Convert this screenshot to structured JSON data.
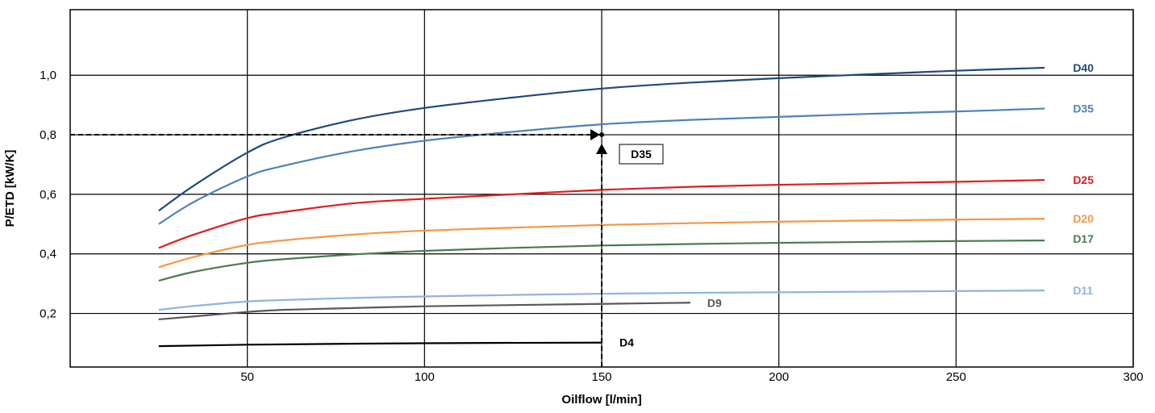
{
  "chart_data": {
    "type": "line",
    "xlabel": "Oilflow [l/min]",
    "ylabel": "P/ETD [kW/K]",
    "xlim": [
      0,
      300
    ],
    "ylim": [
      0.02,
      1.22
    ],
    "xticks": [
      50,
      100,
      150,
      200,
      250,
      300
    ],
    "xtick_labels": [
      "50",
      "100",
      "150",
      "200",
      "250",
      "300"
    ],
    "yticks": [
      0.2,
      0.4,
      0.6,
      0.8,
      1.0
    ],
    "ytick_labels": [
      "0,2",
      "0,4",
      "0,6",
      "0,8",
      "1,0"
    ],
    "grid": true,
    "series": [
      {
        "name": "D40",
        "color": "#1f497d",
        "x": [
          25,
          35,
          50,
          60,
          80,
          100,
          125,
          150,
          175,
          200,
          225,
          250,
          275
        ],
        "y": [
          0.545,
          0.63,
          0.74,
          0.79,
          0.85,
          0.89,
          0.925,
          0.955,
          0.975,
          0.99,
          1.003,
          1.015,
          1.025
        ]
      },
      {
        "name": "D35",
        "color": "#4f81bd",
        "x": [
          25,
          35,
          50,
          60,
          80,
          100,
          125,
          150,
          175,
          200,
          225,
          250,
          275
        ],
        "y": [
          0.5,
          0.575,
          0.66,
          0.695,
          0.745,
          0.78,
          0.81,
          0.835,
          0.85,
          0.86,
          0.87,
          0.878,
          0.888
        ]
      },
      {
        "name": "D25",
        "color": "#e41a1c",
        "x": [
          25,
          35,
          50,
          60,
          80,
          100,
          125,
          150,
          175,
          200,
          225,
          250,
          275
        ],
        "y": [
          0.42,
          0.465,
          0.52,
          0.54,
          0.57,
          0.585,
          0.6,
          0.615,
          0.625,
          0.632,
          0.637,
          0.642,
          0.648
        ]
      },
      {
        "name": "D20",
        "color": "#f79646",
        "x": [
          25,
          35,
          50,
          60,
          80,
          100,
          125,
          150,
          175,
          200,
          225,
          250,
          275
        ],
        "y": [
          0.355,
          0.39,
          0.43,
          0.445,
          0.465,
          0.478,
          0.488,
          0.497,
          0.503,
          0.508,
          0.512,
          0.515,
          0.518
        ]
      },
      {
        "name": "D17",
        "color": "#4a7c4e",
        "x": [
          25,
          35,
          50,
          60,
          80,
          100,
          125,
          150,
          175,
          200,
          225,
          250,
          275
        ],
        "y": [
          0.31,
          0.34,
          0.37,
          0.382,
          0.398,
          0.41,
          0.42,
          0.428,
          0.433,
          0.437,
          0.44,
          0.443,
          0.445
        ]
      },
      {
        "name": "D11",
        "color": "#8db3e2",
        "x": [
          25,
          35,
          50,
          60,
          80,
          100,
          125,
          150,
          175,
          200,
          225,
          250,
          275
        ],
        "y": [
          0.212,
          0.225,
          0.24,
          0.245,
          0.252,
          0.257,
          0.262,
          0.266,
          0.269,
          0.271,
          0.273,
          0.275,
          0.277
        ]
      },
      {
        "name": "D9",
        "color": "#595959",
        "x": [
          25,
          35,
          50,
          60,
          80,
          100,
          125,
          150,
          175
        ],
        "y": [
          0.18,
          0.19,
          0.205,
          0.212,
          0.218,
          0.224,
          0.228,
          0.232,
          0.236
        ]
      },
      {
        "name": "D4",
        "color": "#000000",
        "x": [
          25,
          50,
          100,
          150
        ],
        "y": [
          0.09,
          0.095,
          0.1,
          0.102
        ]
      }
    ],
    "annotations": {
      "example_flow": 150,
      "example_value": 0.8,
      "example_label": "D35",
      "example_label_y": 0.735
    }
  }
}
